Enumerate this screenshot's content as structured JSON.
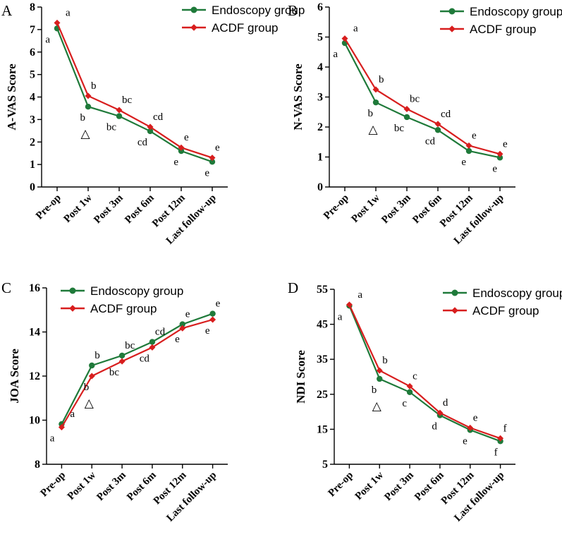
{
  "colors": {
    "endoscopy": "#1f7a3a",
    "acdf": "#d81e1e"
  },
  "chart_data": [
    {
      "panel": "A",
      "type": "line",
      "ylabel": "A-VAS Score",
      "ylim": [
        0,
        8
      ],
      "yticks": [
        0,
        1,
        2,
        3,
        4,
        5,
        6,
        7,
        8
      ],
      "categories": [
        "Pre-op",
        "Post 1w",
        "Post 3m",
        "Post 6m",
        "Post 12m",
        "Last follow-up"
      ],
      "legend": [
        "Endoscopy group",
        "ACDF group"
      ],
      "series": [
        {
          "name": "Endoscopy group",
          "values": [
            7.05,
            3.57,
            3.15,
            2.48,
            1.6,
            1.12
          ],
          "labels": [
            "a",
            "b",
            "bc",
            "cd",
            "e",
            "e"
          ]
        },
        {
          "name": "ACDF group",
          "values": [
            7.3,
            4.05,
            3.42,
            2.67,
            1.75,
            1.3
          ],
          "labels": [
            "a",
            "b",
            "bc",
            "cd",
            "e",
            "e"
          ]
        }
      ],
      "triangle": "△",
      "triangle_category": "Post 1w"
    },
    {
      "panel": "B",
      "type": "line",
      "ylabel": "N-VAS Score",
      "ylim": [
        0,
        6
      ],
      "yticks": [
        0,
        1,
        2,
        3,
        4,
        5,
        6
      ],
      "categories": [
        "Pre-op",
        "Post 1w",
        "Post 3m",
        "Post 6m",
        "Post 12m",
        "Last follow-up"
      ],
      "legend": [
        "Endoscopy group",
        "ACDF group"
      ],
      "series": [
        {
          "name": "Endoscopy group",
          "values": [
            4.8,
            2.82,
            2.33,
            1.9,
            1.2,
            0.98
          ],
          "labels": [
            "a",
            "b",
            "bc",
            "cd",
            "e",
            "e"
          ]
        },
        {
          "name": "ACDF group",
          "values": [
            4.95,
            3.25,
            2.6,
            2.1,
            1.38,
            1.1
          ],
          "labels": [
            "a",
            "b",
            "bc",
            "cd",
            "e",
            "e"
          ]
        }
      ],
      "triangle": "△",
      "triangle_category": "Post 1w"
    },
    {
      "panel": "C",
      "type": "line",
      "ylabel": "JOA Score",
      "ylim": [
        8,
        16
      ],
      "yticks": [
        8,
        10,
        12,
        14,
        16
      ],
      "categories": [
        "Pre-op",
        "Post 1w",
        "Post 3m",
        "Post 6m",
        "Post 12m",
        "Last follow-up"
      ],
      "legend": [
        "Endoscopy group",
        "ACDF group"
      ],
      "series": [
        {
          "name": "Endoscopy group",
          "values": [
            9.82,
            12.48,
            12.93,
            13.55,
            14.35,
            14.83
          ],
          "labels": [
            "a",
            "b",
            "bc",
            "cd",
            "e",
            "e"
          ]
        },
        {
          "name": "ACDF group",
          "values": [
            9.68,
            12.0,
            12.67,
            13.3,
            14.17,
            14.56
          ],
          "labels": [
            "a",
            "b",
            "bc",
            "cd",
            "e",
            "e"
          ]
        }
      ],
      "triangle": "△",
      "triangle_category": "Post 1w"
    },
    {
      "panel": "D",
      "type": "line",
      "ylabel": "NDI Score",
      "ylim": [
        5,
        55
      ],
      "yticks": [
        5,
        15,
        25,
        35,
        45,
        55
      ],
      "categories": [
        "Pre-op",
        "Post 1w",
        "Post 3m",
        "Post 6m",
        "Post 12m",
        "Last follow-up"
      ],
      "legend": [
        "Endoscopy group",
        "ACDF group"
      ],
      "series": [
        {
          "name": "Endoscopy group",
          "values": [
            50.3,
            29.4,
            25.6,
            19.0,
            14.8,
            11.6
          ],
          "labels": [
            "a",
            "b",
            "c",
            "d",
            "e",
            "f"
          ]
        },
        {
          "name": "ACDF group",
          "values": [
            50.6,
            31.8,
            27.3,
            19.7,
            15.4,
            12.4
          ],
          "labels": [
            "a",
            "b",
            "c",
            "d",
            "e",
            "f"
          ]
        }
      ],
      "triangle": "△",
      "triangle_category": "Post 1w"
    }
  ]
}
